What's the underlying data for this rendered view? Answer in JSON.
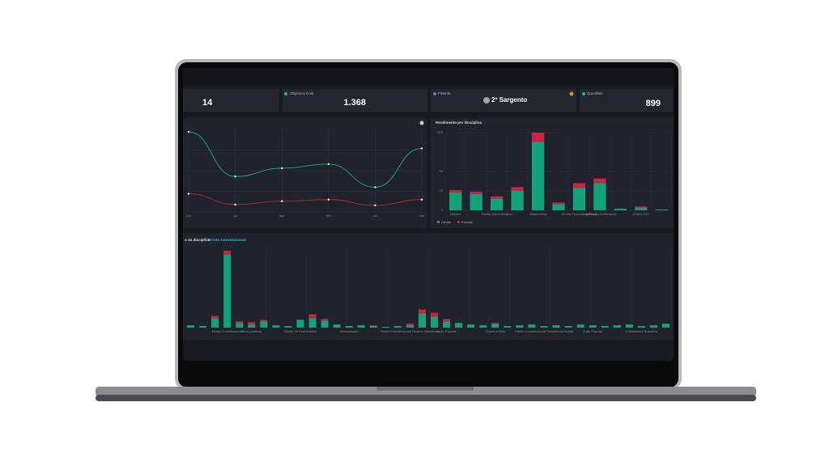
{
  "stats": [
    {
      "value": "14"
    },
    {
      "label": "Objetivos Coin",
      "value": "1.368"
    },
    {
      "label": "Patente",
      "value": "2º Sargento"
    },
    {
      "label": "Questões",
      "value": "899"
    }
  ],
  "chart_data": [
    {
      "type": "line",
      "categories": [
        "jun",
        "jul",
        "ago",
        "set",
        "out",
        "nov"
      ],
      "ylim": [
        0,
        100
      ],
      "series": [
        {
          "color": "#1fb59a",
          "values": [
            97,
            43,
            53,
            58,
            30,
            77
          ]
        },
        {
          "color": "#c8283c",
          "values": [
            22,
            9,
            13,
            15,
            8,
            15
          ]
        }
      ]
    },
    {
      "type": "bar",
      "title": "Rendimento por Disciplina",
      "stacked": true,
      "categories": [
        "História",
        null,
        "Direito Administrativo",
        null,
        "Matemática",
        null,
        "Direito Processual Penal",
        "Legislação Institucional",
        null,
        "Direito Pen",
        null
      ],
      "ylim": [
        0,
        100
      ],
      "yticks": [
        0,
        25,
        50,
        100
      ],
      "series": [
        {
          "name": "Certas",
          "color": "#12a37a",
          "values": [
            23,
            21,
            15,
            25,
            88,
            8,
            29,
            35,
            2,
            3,
            1
          ]
        },
        {
          "name": "Erradas",
          "color": "#d0213f",
          "values": [
            3,
            3,
            3,
            5,
            12,
            2,
            6,
            6,
            0,
            2,
            0
          ]
        }
      ]
    },
    {
      "type": "bar",
      "title": "o da disciplina",
      "subtitle": "Direito Constitucional",
      "stacked": true,
      "categories": [
        null,
        null,
        null,
        "Direito Constitucional",
        null,
        "Bens públicos",
        null,
        null,
        null,
        "Direito de Propriedade",
        null,
        null,
        null,
        "Arrecadação",
        null,
        null,
        null,
        null,
        "Direito Constitucional Direitos Individuais",
        null,
        null,
        "Ação Popular",
        null,
        null,
        null,
        "Direito à Vida",
        null,
        null,
        null,
        "Direito Constitucional Previdência Social",
        null,
        null,
        null,
        "Ação Popular",
        null,
        null,
        null,
        "Cristianismo Brasileiro",
        null,
        null
      ],
      "ylim": [
        0,
        100
      ],
      "series": [
        {
          "color": "#12a37a",
          "values": [
            3,
            2,
            12,
            93,
            6,
            4,
            8,
            3,
            2,
            10,
            12,
            9,
            4,
            2,
            3,
            2,
            1,
            2,
            3,
            18,
            14,
            8,
            6,
            4,
            3,
            5,
            2,
            3,
            4,
            2,
            3,
            2,
            4,
            3,
            2,
            3,
            4,
            2,
            3,
            5
          ]
        },
        {
          "color": "#d0213f",
          "values": [
            0,
            0,
            3,
            5,
            2,
            3,
            2,
            0,
            0,
            0,
            5,
            2,
            0,
            0,
            0,
            1,
            0,
            0,
            2,
            5,
            5,
            3,
            0,
            0,
            0,
            1,
            0,
            0,
            0,
            0,
            0,
            0,
            0,
            0,
            0,
            0,
            0,
            0,
            0,
            0
          ]
        }
      ]
    }
  ]
}
